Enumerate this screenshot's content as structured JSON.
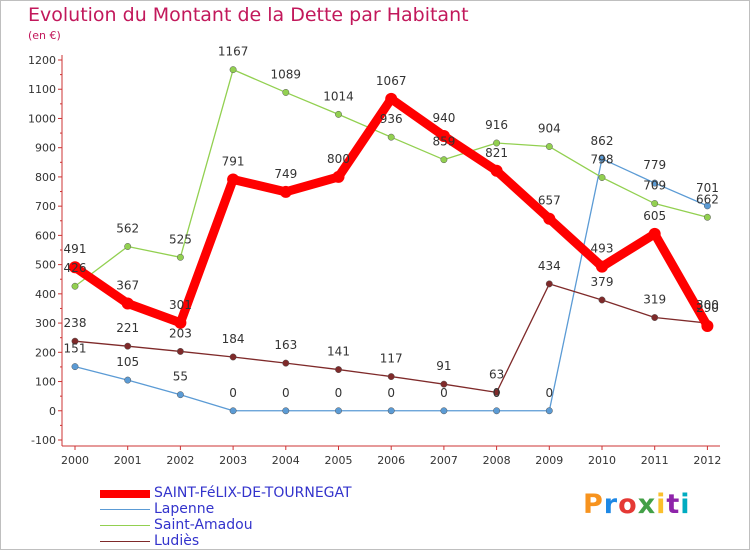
{
  "header": {
    "title": "Evolution du Montant de la Dette par Habitant",
    "subtitle": "(en €)"
  },
  "logo": {
    "text": "Proxiti",
    "colors": [
      "#f7931e",
      "#1e88e5",
      "#e53935",
      "#43a047",
      "#fbc02d",
      "#8e24aa",
      "#00acc1"
    ]
  },
  "chart_data": {
    "type": "line",
    "title": "Evolution du Montant de la Dette par Habitant",
    "subtitle": "(en €)",
    "xlabel": "",
    "ylabel": "",
    "ylim": [
      -100,
      1200
    ],
    "yticks": [
      -100,
      0,
      100,
      200,
      300,
      400,
      500,
      600,
      700,
      800,
      900,
      1000,
      1100,
      1200
    ],
    "categories": [
      "2000",
      "2001",
      "2002",
      "2003",
      "2004",
      "2005",
      "2006",
      "2007",
      "2008",
      "2009",
      "2010",
      "2011",
      "2012"
    ],
    "grid": false,
    "legend_position": "bottom-left",
    "series": [
      {
        "name": "SAINT-FéLIX-DE-TOURNEGAT",
        "color": "#ff0000",
        "values": [
          491,
          367,
          301,
          791,
          749,
          800,
          1067,
          940,
          821,
          657,
          493,
          605,
          290
        ]
      },
      {
        "name": "Lapenne",
        "color": "#5b9bd5",
        "values": [
          151,
          105,
          55,
          0,
          0,
          0,
          0,
          0,
          0,
          0,
          862,
          779,
          701
        ]
      },
      {
        "name": "Saint-Amadou",
        "color": "#92d050",
        "values": [
          426,
          562,
          525,
          1167,
          1089,
          1014,
          936,
          859,
          916,
          904,
          798,
          709,
          662
        ]
      },
      {
        "name": "Ludiès",
        "color": "#7f2a2a",
        "values": [
          238,
          221,
          203,
          184,
          163,
          141,
          117,
          91,
          63,
          434,
          379,
          319,
          300
        ]
      }
    ]
  }
}
